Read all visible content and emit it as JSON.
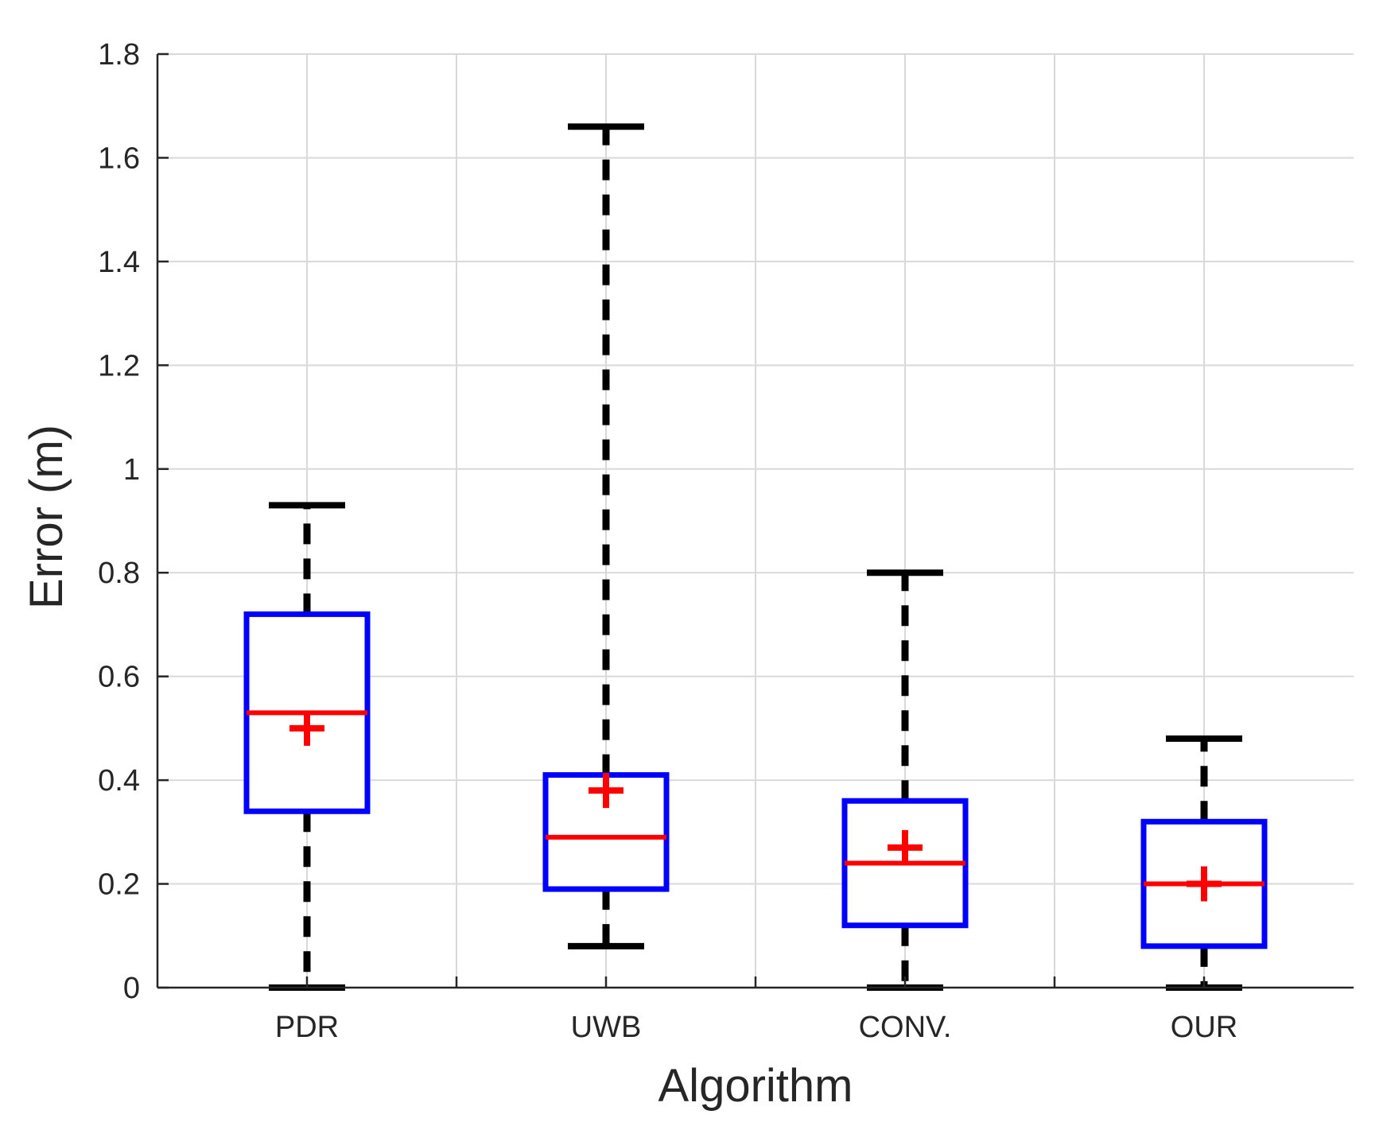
{
  "chart_data": {
    "type": "boxplot",
    "title": "",
    "xlabel": "Algorithm",
    "ylabel": "Error (m)",
    "ylim": [
      0,
      1.8
    ],
    "yticks": [
      0,
      0.2,
      0.4,
      0.6,
      0.8,
      1,
      1.2,
      1.4,
      1.6,
      1.8
    ],
    "ytick_labels": [
      "0",
      "0.2",
      "0.4",
      "0.6",
      "0.8",
      "1",
      "1.2",
      "1.4",
      "1.6",
      "1.8"
    ],
    "grid": true,
    "categories": [
      "PDR",
      "UWB",
      "CONV.",
      "OUR"
    ],
    "boxes": [
      {
        "name": "PDR",
        "min": 0.0,
        "q1": 0.34,
        "median": 0.53,
        "q3": 0.72,
        "max": 0.93,
        "mean": 0.5
      },
      {
        "name": "UWB",
        "min": 0.08,
        "q1": 0.19,
        "median": 0.29,
        "q3": 0.41,
        "max": 1.66,
        "mean": 0.38
      },
      {
        "name": "CONV.",
        "min": 0.0,
        "q1": 0.12,
        "median": 0.24,
        "q3": 0.36,
        "max": 0.8,
        "mean": 0.27
      },
      {
        "name": "OUR",
        "min": 0.0,
        "q1": 0.08,
        "median": 0.2,
        "q3": 0.32,
        "max": 0.48,
        "mean": 0.2
      }
    ],
    "colors": {
      "box": "#0000ff",
      "median": "#ff0000",
      "mean_marker": "#ff0000",
      "whisker": "#000000",
      "grid": "#d9d9d9",
      "axis": "#262626"
    }
  }
}
